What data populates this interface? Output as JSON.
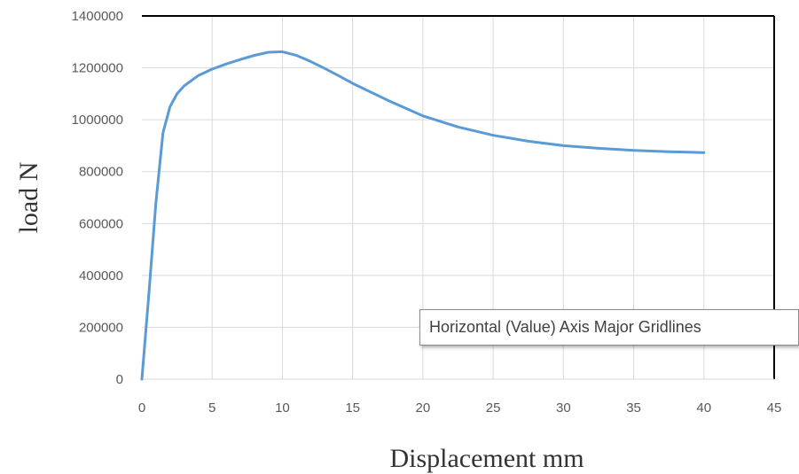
{
  "chart_data": {
    "type": "line",
    "title": "",
    "xlabel": "Displacement mm",
    "ylabel": "load N",
    "xlim": [
      0,
      45
    ],
    "ylim": [
      0,
      1400000
    ],
    "x_ticks": [
      "0",
      "5",
      "10",
      "15",
      "20",
      "25",
      "30",
      "35",
      "40",
      "45"
    ],
    "y_ticks": [
      "0",
      "200000",
      "400000",
      "600000",
      "800000",
      "1000000",
      "1200000",
      "1400000"
    ],
    "grid": true,
    "series": [
      {
        "color": "#5b9bd5",
        "x": [
          0,
          0.5,
          1,
          1.5,
          2,
          2.5,
          3,
          4,
          5,
          6,
          7,
          8,
          9,
          10,
          11,
          12,
          13,
          14,
          15,
          17.5,
          20,
          22.5,
          25,
          27.5,
          30,
          32.5,
          35,
          37.5,
          40
        ],
        "y": [
          0,
          330000,
          680000,
          950000,
          1050000,
          1100000,
          1130000,
          1170000,
          1195000,
          1215000,
          1232000,
          1248000,
          1260000,
          1262000,
          1248000,
          1225000,
          1198000,
          1170000,
          1140000,
          1075000,
          1015000,
          972000,
          940000,
          917000,
          900000,
          890000,
          882000,
          877000,
          873000
        ]
      }
    ]
  },
  "tooltip": {
    "text": "Horizontal (Value) Axis Major Gridlines"
  }
}
